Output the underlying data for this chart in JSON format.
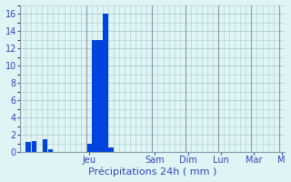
{
  "bar_data": [
    0,
    1.2,
    1.3,
    0.0,
    1.5,
    0.3,
    0.0,
    0.0,
    0.0,
    0.0,
    0.0,
    0.0,
    1.0,
    13.0,
    13.0,
    16.0,
    0.5,
    0.0,
    0.0,
    0.0,
    0.0,
    0.0,
    0.0,
    0.0,
    0.0,
    0.0,
    0.0,
    0.0,
    0.0,
    0.0,
    0.0,
    0.0,
    0.0,
    0.0,
    0.0,
    0.0,
    0.0,
    0.0,
    0.0,
    0.0,
    0.0,
    0.0,
    0.0,
    0.0,
    0.0,
    0.0,
    0.0,
    0.0
  ],
  "bar_color": "#0044dd",
  "bg_color": "#dff5f5",
  "grid_color": "#aacccc",
  "tick_label_color": "#3344bb",
  "xlabel": "Précipitations 24h ( mm )",
  "xlabel_color": "#3344bb",
  "xlabel_fontsize": 8,
  "ylim_max": 17,
  "yticks": [
    0,
    2,
    4,
    6,
    8,
    10,
    12,
    14,
    16
  ],
  "ytick_fontsize": 7,
  "day_labels": [
    "Jeu",
    "Sam",
    "Dim",
    "Lun",
    "Mar",
    "M"
  ],
  "day_tick_positions": [
    12,
    24,
    30,
    36,
    42,
    47
  ],
  "day_vline_positions": [
    11.5,
    23.5,
    29.5,
    35.5,
    41.5,
    46.5
  ],
  "n_bars": 48,
  "bar_width": 0.9,
  "xlim": [
    -0.5,
    47.5
  ]
}
